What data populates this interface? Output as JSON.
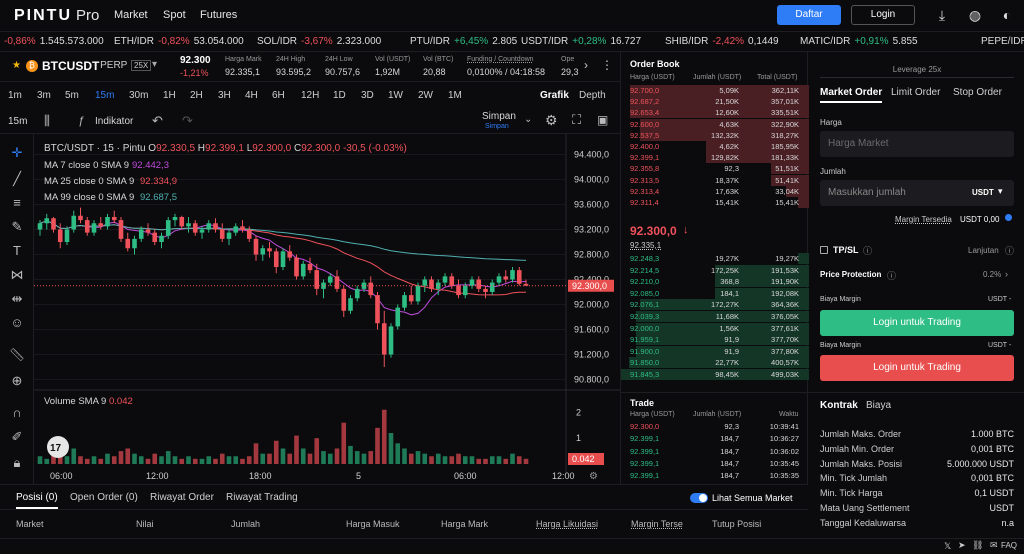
{
  "nav": {
    "logo": "PINTU",
    "logo_suffix": "Pro",
    "links": [
      "Market",
      "Spot",
      "Futures"
    ],
    "daftar": "Daftar",
    "login": "Login"
  },
  "ticker": [
    {
      "pair": "",
      "change": "-0,86%",
      "price": "1.545.573.000",
      "dir": "neg"
    },
    {
      "pair": "ETH/IDR",
      "change": "-0,82%",
      "price": "53.054.000",
      "dir": "neg"
    },
    {
      "pair": "SOL/IDR",
      "change": "-3,67%",
      "price": "2.323.000",
      "dir": "neg"
    },
    {
      "pair": "PTU/IDR",
      "change": "+6,45%",
      "price": "2.805",
      "dir": "pos"
    },
    {
      "pair": "USDT/IDR",
      "change": "+0,28%",
      "price": "16.727",
      "dir": "pos"
    },
    {
      "pair": "SHIB/IDR",
      "change": "-2,42%",
      "price": "0,1449",
      "dir": "neg"
    },
    {
      "pair": "MATIC/IDR",
      "change": "+0,91%",
      "price": "5.855",
      "dir": "pos"
    },
    {
      "pair": "PEPE/IDR",
      "change": "",
      "price": "",
      "dir": "neg"
    }
  ],
  "pairbar": {
    "symbol": "BTCUSDT",
    "type": "- PERP",
    "leverage": "25X",
    "last": "92.300",
    "last_change": "-1,21%",
    "mark_label": "Harga Mark",
    "mark": "92.335,1",
    "high_label": "24H High",
    "high": "93.595,2",
    "low_label": "24H Low",
    "low": "90.757,6",
    "volu_label": "Vol (USDT)",
    "volu": "1,92M",
    "volb_label": "Vol (BTC)",
    "volb": "20,88",
    "fund_label": "Funding / Countdown",
    "fund": "0,0100% / 04:18:58",
    "open_label": "Ope",
    "open": "29,3"
  },
  "timeframes": [
    "1m",
    "3m",
    "5m",
    "15m",
    "30m",
    "1H",
    "2H",
    "3H",
    "4H",
    "6H",
    "12H",
    "1D",
    "3D",
    "1W",
    "2W",
    "1M"
  ],
  "active_tf": "15m",
  "view_tabs": [
    "Grafik",
    "Depth"
  ],
  "toolrow": {
    "interval": "15m",
    "indicator": "Indikator",
    "save": "Simpan",
    "save_sub": "Simpan"
  },
  "chart_data": {
    "type": "candlestick",
    "header": "BTC/USDT · 15 · Pintu",
    "ohlc": {
      "o": "92.330,5",
      "h": "92.399,1",
      "l": "92.300,0",
      "c": "92.300,0",
      "chg": "-30,5 (-0.03%)"
    },
    "ma": [
      {
        "label": "MA 7 close 0 SMA 9",
        "value": "92.442,3",
        "color": "#c14be0"
      },
      {
        "label": "MA 25 close 0 SMA 9",
        "value": "92.334,9",
        "color": "#f0525b"
      },
      {
        "label": "MA 99 close 0 SMA 9",
        "value": "92.687,5",
        "color": "#4fb0b0"
      }
    ],
    "y_ticks": [
      "94.400,0",
      "94.000,0",
      "93.600,0",
      "93.200,0",
      "92.800,0",
      "92.400,0",
      "92.000,0",
      "91.600,0",
      "91.200,0",
      "90.800,0"
    ],
    "price_tag": "92.300,0",
    "volume_label": "Volume SMA 9",
    "volume_value": "0.042",
    "volume_ticks": [
      "2",
      "1"
    ],
    "volume_tag": "0.042",
    "x_ticks": [
      "06:00",
      "12:00",
      "18:00",
      "5",
      "06:00",
      "12:00"
    ],
    "ylim": [
      90600,
      94600
    ],
    "candles": [
      [
        93200,
        93350,
        93100,
        93300
      ],
      [
        93300,
        93450,
        93200,
        93380
      ],
      [
        93380,
        93400,
        93150,
        93200
      ],
      [
        93200,
        93300,
        92900,
        93000
      ],
      [
        93000,
        93250,
        92950,
        93200
      ],
      [
        93200,
        93500,
        93150,
        93420
      ],
      [
        93420,
        93550,
        93300,
        93350
      ],
      [
        93350,
        93400,
        93100,
        93150
      ],
      [
        93150,
        93350,
        93100,
        93300
      ],
      [
        93300,
        93400,
        93200,
        93250
      ],
      [
        93250,
        93450,
        93200,
        93400
      ],
      [
        93400,
        93500,
        93300,
        93350
      ],
      [
        93350,
        93400,
        93000,
        93050
      ],
      [
        93050,
        93150,
        92850,
        92900
      ],
      [
        92900,
        93100,
        92800,
        93050
      ],
      [
        93050,
        93250,
        93000,
        93200
      ],
      [
        93200,
        93300,
        93100,
        93150
      ],
      [
        93150,
        93200,
        92950,
        93000
      ],
      [
        93000,
        93150,
        92900,
        93100
      ],
      [
        93100,
        93400,
        93050,
        93350
      ],
      [
        93350,
        93450,
        93250,
        93400
      ],
      [
        93400,
        93420,
        93200,
        93250
      ],
      [
        93250,
        93400,
        93150,
        93300
      ],
      [
        93300,
        93350,
        93100,
        93150
      ],
      [
        93150,
        93250,
        93050,
        93200
      ],
      [
        93200,
        93350,
        93150,
        93300
      ],
      [
        93300,
        93380,
        93150,
        93200
      ],
      [
        93200,
        93300,
        93000,
        93050
      ],
      [
        93050,
        93200,
        92950,
        93150
      ],
      [
        93150,
        93300,
        93100,
        93250
      ],
      [
        93250,
        93350,
        93150,
        93200
      ],
      [
        93200,
        93250,
        93000,
        93050
      ],
      [
        93050,
        93100,
        92700,
        92800
      ],
      [
        92800,
        92950,
        92700,
        92900
      ],
      [
        92900,
        93000,
        92750,
        92850
      ],
      [
        92850,
        92900,
        92500,
        92600
      ],
      [
        92600,
        92900,
        92550,
        92850
      ],
      [
        92850,
        92950,
        92700,
        92750
      ],
      [
        92750,
        92800,
        92400,
        92450
      ],
      [
        92450,
        92700,
        92400,
        92650
      ],
      [
        92650,
        92750,
        92500,
        92550
      ],
      [
        92550,
        92650,
        92150,
        92250
      ],
      [
        92250,
        92400,
        92100,
        92350
      ],
      [
        92350,
        92500,
        92300,
        92450
      ],
      [
        92450,
        92550,
        92200,
        92250
      ],
      [
        92250,
        92300,
        91800,
        91900
      ],
      [
        91900,
        92150,
        91850,
        92100
      ],
      [
        92100,
        92300,
        92050,
        92250
      ],
      [
        92250,
        92400,
        92200,
        92350
      ],
      [
        92350,
        92450,
        92100,
        92150
      ],
      [
        92150,
        92200,
        91600,
        91700
      ],
      [
        91700,
        91900,
        91000,
        91200
      ],
      [
        91200,
        91700,
        91150,
        91650
      ],
      [
        91650,
        92000,
        91600,
        91950
      ],
      [
        91950,
        92200,
        91900,
        92150
      ],
      [
        92150,
        92300,
        92000,
        92050
      ],
      [
        92050,
        92350,
        92000,
        92300
      ],
      [
        92300,
        92450,
        92200,
        92400
      ],
      [
        92400,
        92450,
        92200,
        92250
      ],
      [
        92250,
        92400,
        92150,
        92350
      ],
      [
        92350,
        92500,
        92300,
        92450
      ],
      [
        92450,
        92500,
        92250,
        92300
      ],
      [
        92300,
        92400,
        92100,
        92150
      ],
      [
        92150,
        92350,
        92100,
        92300
      ],
      [
        92300,
        92450,
        92250,
        92400
      ],
      [
        92400,
        92450,
        92200,
        92250
      ],
      [
        92250,
        92300,
        92100,
        92200
      ],
      [
        92200,
        92400,
        92150,
        92350
      ],
      [
        92350,
        92500,
        92300,
        92450
      ],
      [
        92450,
        92550,
        92350,
        92400
      ],
      [
        92400,
        92600,
        92350,
        92550
      ],
      [
        92550,
        92600,
        92300,
        92330
      ],
      [
        92330,
        92399,
        92300,
        92300
      ]
    ],
    "volumes": [
      0.3,
      0.2,
      0.4,
      0.5,
      0.3,
      0.6,
      0.3,
      0.2,
      0.3,
      0.2,
      0.4,
      0.3,
      0.5,
      0.6,
      0.4,
      0.3,
      0.2,
      0.4,
      0.3,
      0.5,
      0.3,
      0.2,
      0.3,
      0.2,
      0.2,
      0.3,
      0.2,
      0.4,
      0.3,
      0.3,
      0.2,
      0.3,
      0.8,
      0.4,
      0.4,
      0.9,
      0.6,
      0.4,
      1.1,
      0.6,
      0.4,
      1.0,
      0.5,
      0.4,
      0.6,
      1.6,
      0.7,
      0.5,
      0.4,
      0.5,
      1.4,
      2.1,
      1.2,
      0.8,
      0.6,
      0.4,
      0.5,
      0.4,
      0.3,
      0.4,
      0.3,
      0.3,
      0.4,
      0.3,
      0.3,
      0.2,
      0.2,
      0.3,
      0.3,
      0.2,
      0.4,
      0.3,
      0.2
    ]
  },
  "orderbook": {
    "title": "Order Book",
    "headers": [
      "Harga (USDT)",
      "Jumlah (USDT)",
      "Total (USDT)"
    ],
    "asks": [
      [
        "92.700,0",
        "5,09K",
        "362,11K",
        0.95
      ],
      [
        "92.687,2",
        "21,50K",
        "357,01K",
        0.95
      ],
      [
        "92.653,4",
        "12,60K",
        "335,51K",
        0.95
      ],
      [
        "92.600,0",
        "4,63K",
        "322,90K",
        0.9
      ],
      [
        "92.537,5",
        "132,32K",
        "318,27K",
        0.9
      ],
      [
        "92.400,0",
        "4,62K",
        "185,95K",
        0.55
      ],
      [
        "92.399,1",
        "129,82K",
        "181,33K",
        0.55
      ],
      [
        "92.355,8",
        "92,3",
        "51,51K",
        0.2
      ],
      [
        "92.313,5",
        "18,37K",
        "51,41K",
        0.2
      ],
      [
        "92.313,4",
        "17,63K",
        "33,04K",
        0.12
      ],
      [
        "92.311,4",
        "15,41K",
        "15,41K",
        0.06
      ]
    ],
    "mid": "92.300,0",
    "mid_sub": "92.335,1",
    "bids": [
      [
        "92.248,3",
        "19,27K",
        "19,27K",
        0.06
      ],
      [
        "92.214,5",
        "172,25K",
        "191,53K",
        0.5
      ],
      [
        "92.210,0",
        "368,8",
        "191,90K",
        0.5
      ],
      [
        "92.085,0",
        "184,1",
        "192,08K",
        0.5
      ],
      [
        "92.076,1",
        "172,27K",
        "364,36K",
        0.9
      ],
      [
        "92.039,3",
        "11,68K",
        "376,05K",
        0.92
      ],
      [
        "92.000,0",
        "1,56K",
        "377,61K",
        0.92
      ],
      [
        "91.959,1",
        "91,9",
        "377,70K",
        0.92
      ],
      [
        "91.900,0",
        "91,9",
        "377,80K",
        0.92
      ],
      [
        "91.850,0",
        "22,77K",
        "400,57K",
        0.96
      ],
      [
        "91.845,3",
        "98,45K",
        "499,03K",
        1.0
      ]
    ]
  },
  "trades": {
    "title": "Trade",
    "headers": [
      "Harga (USDT)",
      "Jumlah (USDT)",
      "Waktu"
    ],
    "rows": [
      [
        "92.300,0",
        "92,3",
        "10:39:41",
        "neg"
      ],
      [
        "92.399,1",
        "184,7",
        "10:36:27",
        "pos"
      ],
      [
        "92.399,1",
        "184,7",
        "10:36:02",
        "pos"
      ],
      [
        "92.399,1",
        "184,7",
        "10:35:45",
        "pos"
      ],
      [
        "92.399,1",
        "184,7",
        "10:35:35",
        "pos"
      ]
    ]
  },
  "order_panel": {
    "leverage": "Leverage 25x",
    "tabs": [
      "Market Order",
      "Limit Order",
      "Stop Order"
    ],
    "price_label": "Harga",
    "price_placeholder": "Harga Market",
    "qty_label": "Jumlah",
    "qty_placeholder": "Masukkan jumlah",
    "qty_unit": "USDT",
    "margin_avail_label": "Margin Tersedia",
    "margin_avail": "USDT 0,00",
    "tpsl": "TP/SL",
    "lanjutan": "Lanjutan",
    "protection": "Price Protection",
    "protection_val": "0.2%",
    "cost_label": "Biaya Margin",
    "cost_unit": "USDT",
    "cost_val": "-",
    "buy_btn": "Login untuk Trading",
    "sell_btn": "Login untuk Trading",
    "contract_tabs": [
      "Kontrak",
      "Biaya"
    ],
    "specs": [
      [
        "Jumlah Maks. Order",
        "1.000 BTC"
      ],
      [
        "Jumlah Min. Order",
        "0,001 BTC"
      ],
      [
        "Jumlah Maks. Posisi",
        "5.000.000 USDT"
      ],
      [
        "Min. Tick Jumlah",
        "0,001 BTC"
      ],
      [
        "Min. Tick Harga",
        "0,1 USDT"
      ],
      [
        "Mata Uang Settlement",
        "USDT"
      ],
      [
        "Tanggal Kedaluwarsa",
        "n.a"
      ]
    ]
  },
  "bottom": {
    "tabs": [
      "Posisi (0)",
      "Open Order (0)",
      "Riwayat Order",
      "Riwayat Trading"
    ],
    "toggle_label": "Lihat Semua Market",
    "columns": [
      "Market",
      "Nilai",
      "Jumlah",
      "Harga Masuk",
      "Harga Mark",
      "Harga Likuidasi",
      "Margin Terse",
      "Tutup Posisi"
    ]
  },
  "footer": {
    "faq": "FAQ"
  },
  "colors": {
    "up": "#2ebd85",
    "down": "#f0525b",
    "accent": "#2e7cf6"
  }
}
